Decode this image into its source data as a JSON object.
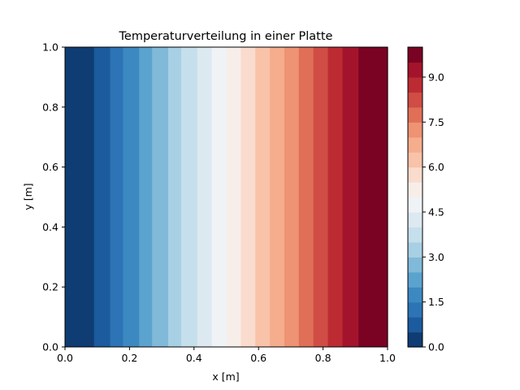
{
  "chart_data": {
    "type": "heatmap",
    "title": "Temperaturverteilung in einer Platte",
    "xlabel": "x [m]",
    "ylabel": "y [m]",
    "xlim": [
      0.0,
      1.0
    ],
    "ylim": [
      0.0,
      1.0
    ],
    "x_ticks": [
      "0.0",
      "0.2",
      "0.4",
      "0.6",
      "0.8",
      "1.0"
    ],
    "y_ticks": [
      "0.0",
      "0.2",
      "0.4",
      "0.6",
      "0.8",
      "1.0"
    ],
    "grid": false,
    "colormap": "RdBu_r",
    "colorbar": {
      "range": [
        0.0,
        10.0
      ],
      "ticks": [
        "0.0",
        "1.5",
        "3.0",
        "4.5",
        "6.0",
        "7.5",
        "9.0"
      ],
      "levels": [
        0.0,
        0.5,
        1.0,
        1.5,
        2.0,
        2.5,
        3.0,
        3.5,
        4.0,
        4.5,
        5.0,
        5.5,
        6.0,
        6.5,
        7.0,
        7.5,
        8.0,
        8.5,
        9.0,
        9.5,
        10.0
      ],
      "colors": [
        "#0f3d73",
        "#1b5b9e",
        "#2c74b6",
        "#3c89c1",
        "#5ba3cf",
        "#81b9d9",
        "#a8d0e5",
        "#c5dfec",
        "#dde9f0",
        "#eff3f5",
        "#f8eee9",
        "#fadcce",
        "#f8c3a8",
        "#f5ad8d",
        "#ee9373",
        "#e06f58",
        "#cf4d45",
        "#bd2b32",
        "#a3142c",
        "#7a0323"
      ]
    },
    "bands": [
      {
        "x_start": 0.0,
        "x_end": 0.09,
        "level": 0
      },
      {
        "x_start": 0.09,
        "x_end": 0.14,
        "level": 1
      },
      {
        "x_start": 0.14,
        "x_end": 0.18,
        "level": 2
      },
      {
        "x_start": 0.18,
        "x_end": 0.23,
        "level": 3
      },
      {
        "x_start": 0.23,
        "x_end": 0.27,
        "level": 4
      },
      {
        "x_start": 0.27,
        "x_end": 0.32,
        "level": 5
      },
      {
        "x_start": 0.32,
        "x_end": 0.36,
        "level": 6
      },
      {
        "x_start": 0.36,
        "x_end": 0.41,
        "level": 7
      },
      {
        "x_start": 0.41,
        "x_end": 0.455,
        "level": 8
      },
      {
        "x_start": 0.455,
        "x_end": 0.5,
        "level": 9
      },
      {
        "x_start": 0.5,
        "x_end": 0.545,
        "level": 10
      },
      {
        "x_start": 0.545,
        "x_end": 0.59,
        "level": 11
      },
      {
        "x_start": 0.59,
        "x_end": 0.635,
        "level": 12
      },
      {
        "x_start": 0.635,
        "x_end": 0.68,
        "level": 13
      },
      {
        "x_start": 0.68,
        "x_end": 0.725,
        "level": 14
      },
      {
        "x_start": 0.725,
        "x_end": 0.77,
        "level": 15
      },
      {
        "x_start": 0.77,
        "x_end": 0.815,
        "level": 16
      },
      {
        "x_start": 0.815,
        "x_end": 0.86,
        "level": 17
      },
      {
        "x_start": 0.86,
        "x_end": 0.91,
        "level": 18
      },
      {
        "x_start": 0.91,
        "x_end": 1.0,
        "level": 19
      }
    ]
  }
}
